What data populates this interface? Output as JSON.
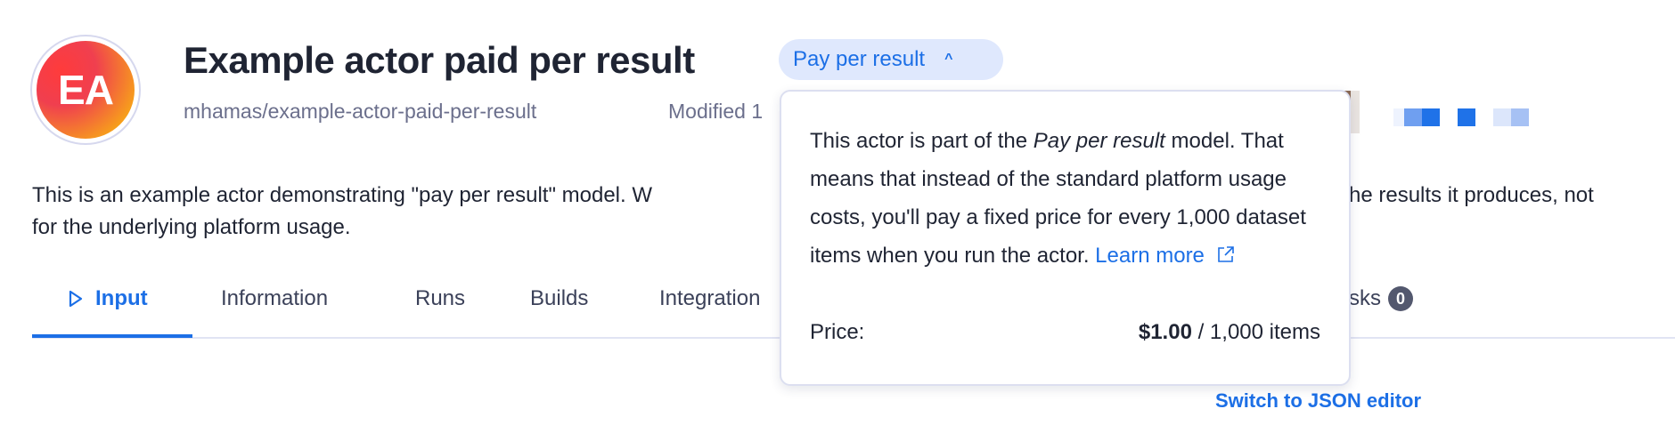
{
  "header": {
    "avatar_initials": "EA",
    "title": "Example actor paid per result",
    "pricing_badge": "Pay per result",
    "slug": "mhamas/example-actor-paid-per-result",
    "modified_partial": "Modified 1"
  },
  "description": {
    "line1_left": "This is an example actor demonstrating \"pay per result\" model. W",
    "line1_right": "he results it produces, not",
    "line2": "for the underlying platform usage."
  },
  "tabs": [
    {
      "label": "Input",
      "active": true
    },
    {
      "label": "Information"
    },
    {
      "label": "Runs"
    },
    {
      "label": "Builds"
    },
    {
      "label": "Integration"
    },
    {
      "label": "sks",
      "count": "0"
    }
  ],
  "popover": {
    "text_before": "This actor is part of the ",
    "text_italic": "Pay per result",
    "text_after": " model. That means that instead of the standard platform usage costs, you'll pay a fixed price for every 1,000 dataset items when you run the actor. ",
    "learn_more": "Learn more",
    "price_label": "Price:",
    "price_value": "$1.00",
    "price_unit": " / 1,000 items"
  },
  "switch_json": "Switch to JSON editor",
  "colors": {
    "accent": "#1c6fe6",
    "badge_bg": "#dfe8fd",
    "text": "#1f2433",
    "muted": "#6b6f8c"
  }
}
